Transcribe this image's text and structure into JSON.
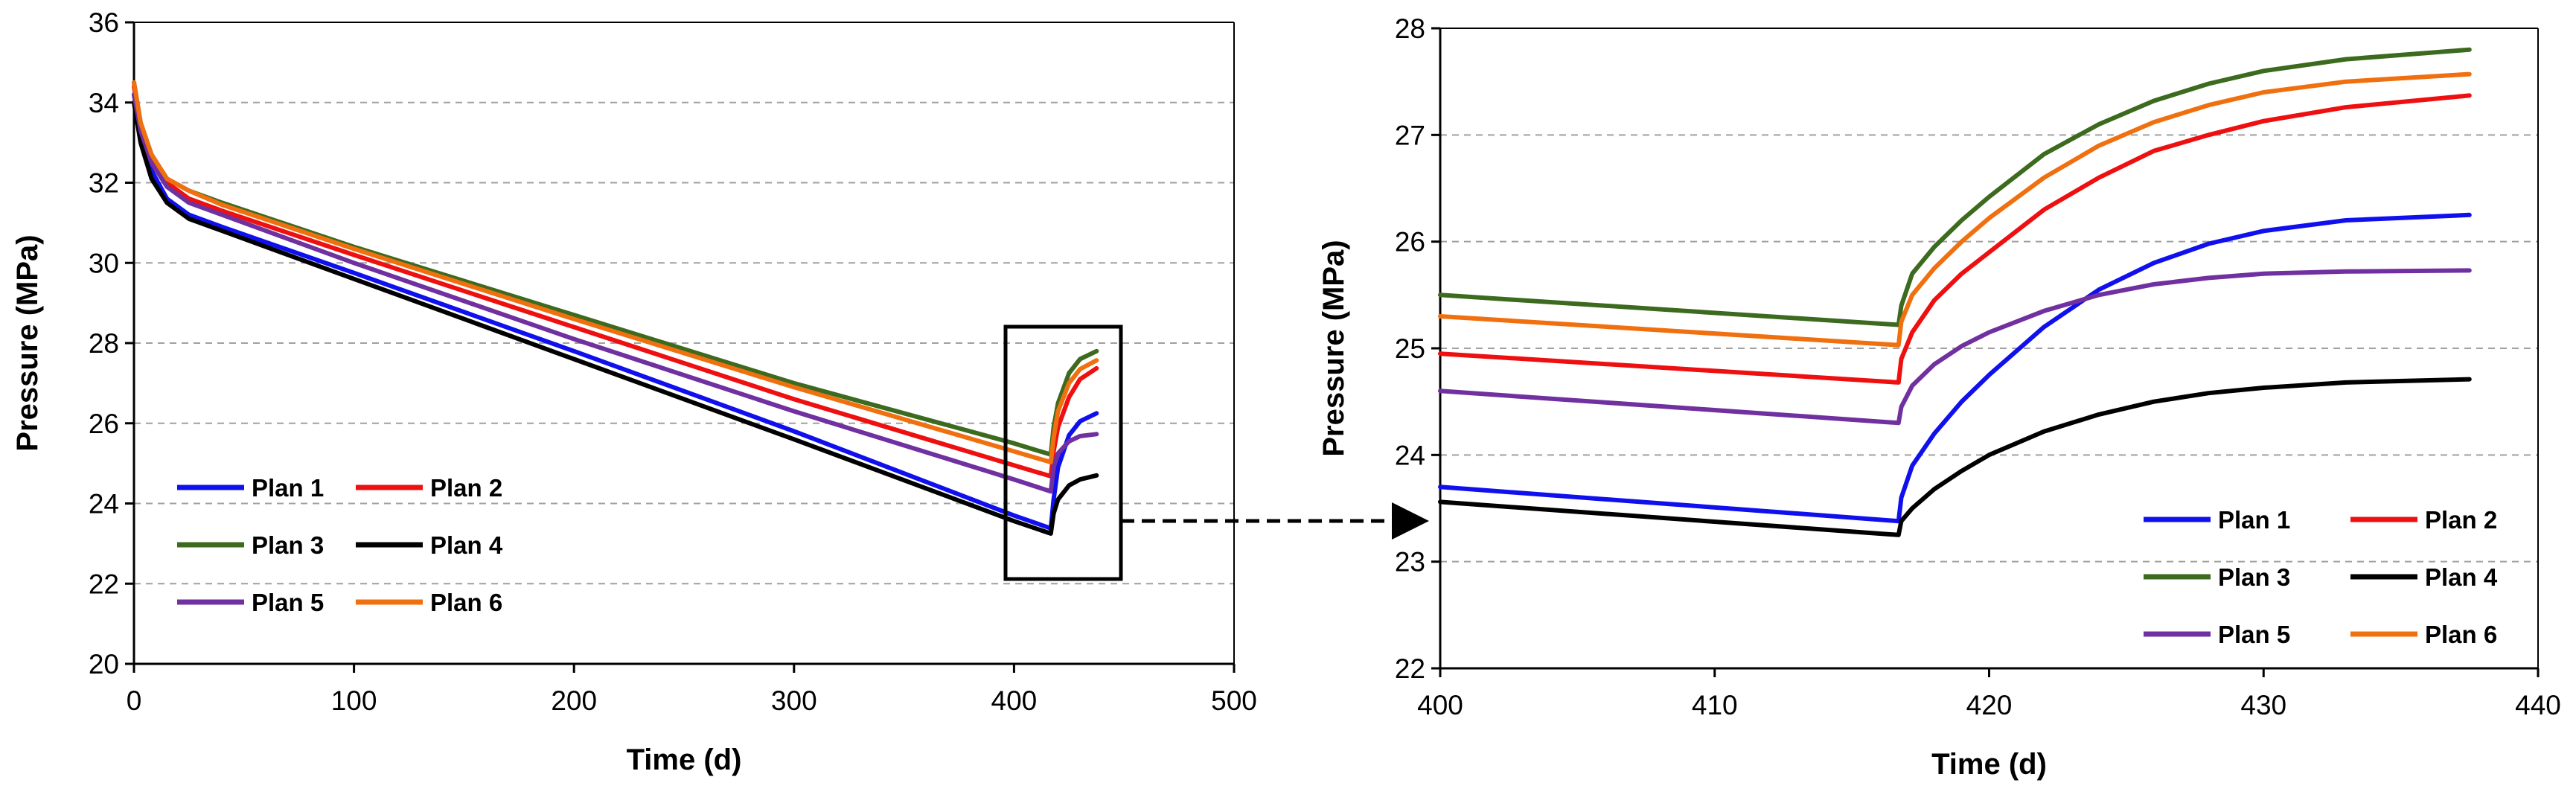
{
  "chart_data": [
    {
      "type": "line",
      "title": "",
      "xlabel": "Time (d)",
      "ylabel": "Pressure (MPa)",
      "xlim": [
        0,
        500
      ],
      "ylim": [
        20,
        36
      ],
      "xticks": [
        0,
        100,
        200,
        300,
        400,
        500
      ],
      "yticks": [
        20,
        22,
        24,
        26,
        28,
        30,
        32,
        34,
        36
      ],
      "grid": "horizontal dashed",
      "legend_position": "bottom-left",
      "series": [
        {
          "name": "Plan 1",
          "color": "#1010ee",
          "x": [
            0,
            3,
            8,
            15,
            25,
            40,
            100,
            200,
            300,
            400,
            416.7,
            418,
            420,
            425,
            430,
            437.5
          ],
          "y": [
            34.2,
            33.2,
            32.3,
            31.6,
            31.2,
            30.9,
            29.75,
            27.8,
            25.8,
            23.7,
            23.38,
            24.1,
            24.9,
            25.7,
            26.05,
            26.25
          ]
        },
        {
          "name": "Plan 2",
          "color": "#ee1010",
          "x": [
            0,
            3,
            8,
            15,
            25,
            40,
            100,
            200,
            300,
            400,
            416.7,
            418,
            420,
            425,
            430,
            437.5
          ],
          "y": [
            34.4,
            33.4,
            32.6,
            32.0,
            31.6,
            31.3,
            30.2,
            28.4,
            26.6,
            24.95,
            24.68,
            25.3,
            25.9,
            26.65,
            27.1,
            27.37
          ]
        },
        {
          "name": "Plan 3",
          "color": "#3c6a1e",
          "x": [
            0,
            3,
            8,
            15,
            25,
            40,
            100,
            200,
            300,
            400,
            416.7,
            418,
            420,
            425,
            430,
            437.5
          ],
          "y": [
            34.5,
            33.5,
            32.7,
            32.1,
            31.8,
            31.5,
            30.4,
            28.7,
            27.0,
            25.5,
            25.22,
            25.9,
            26.5,
            27.25,
            27.6,
            27.8
          ]
        },
        {
          "name": "Plan 4",
          "color": "#000000",
          "x": [
            0,
            3,
            8,
            15,
            25,
            40,
            100,
            200,
            300,
            400,
            416.7,
            418,
            420,
            425,
            430,
            437.5
          ],
          "y": [
            34.0,
            33.0,
            32.1,
            31.5,
            31.1,
            30.8,
            29.6,
            27.6,
            25.6,
            23.56,
            23.25,
            23.75,
            24.1,
            24.45,
            24.6,
            24.7
          ]
        },
        {
          "name": "Plan 5",
          "color": "#7030a0",
          "x": [
            0,
            3,
            8,
            15,
            25,
            40,
            100,
            200,
            300,
            400,
            416.7,
            418,
            420,
            425,
            430,
            437.5
          ],
          "y": [
            34.2,
            33.3,
            32.5,
            31.9,
            31.5,
            31.2,
            30.0,
            28.1,
            26.3,
            24.6,
            24.3,
            24.9,
            25.25,
            25.55,
            25.68,
            25.73
          ]
        },
        {
          "name": "Plan 6",
          "color": "#f07010",
          "x": [
            0,
            3,
            8,
            15,
            25,
            40,
            100,
            200,
            300,
            400,
            416.7,
            418,
            420,
            425,
            430,
            437.5
          ],
          "y": [
            34.5,
            33.5,
            32.7,
            32.1,
            31.8,
            31.45,
            30.35,
            28.6,
            26.9,
            25.3,
            25.03,
            25.65,
            26.3,
            27.0,
            27.35,
            27.57
          ]
        }
      ]
    },
    {
      "type": "line",
      "title": "",
      "xlabel": "Time (d)",
      "ylabel": "Pressure (MPa)",
      "xlim": [
        400,
        440
      ],
      "ylim": [
        22,
        28
      ],
      "xticks": [
        400,
        410,
        420,
        430,
        440
      ],
      "yticks": [
        22,
        23,
        24,
        25,
        26,
        27,
        28
      ],
      "grid": "horizontal dashed",
      "legend_position": "bottom-right",
      "series": [
        {
          "name": "Plan 1",
          "color": "#1010ee",
          "x": [
            400,
            416.7,
            416.8,
            417.2,
            418,
            419,
            420,
            422,
            424,
            426,
            428,
            430,
            433,
            437.5
          ],
          "y": [
            23.7,
            23.38,
            23.6,
            23.9,
            24.2,
            24.5,
            24.75,
            25.2,
            25.55,
            25.8,
            25.98,
            26.1,
            26.2,
            26.25
          ]
        },
        {
          "name": "Plan 2",
          "color": "#ee1010",
          "x": [
            400,
            416.7,
            416.8,
            417.2,
            418,
            419,
            420,
            422,
            424,
            426,
            428,
            430,
            433,
            437.5
          ],
          "y": [
            24.95,
            24.68,
            24.9,
            25.15,
            25.45,
            25.7,
            25.9,
            26.3,
            26.6,
            26.85,
            27.0,
            27.13,
            27.26,
            27.37
          ]
        },
        {
          "name": "Plan 3",
          "color": "#3c6a1e",
          "x": [
            400,
            416.7,
            416.8,
            417.2,
            418,
            419,
            420,
            422,
            424,
            426,
            428,
            430,
            433,
            437.5
          ],
          "y": [
            25.5,
            25.22,
            25.4,
            25.7,
            25.95,
            26.2,
            26.42,
            26.82,
            27.1,
            27.32,
            27.48,
            27.6,
            27.71,
            27.8
          ]
        },
        {
          "name": "Plan 4",
          "color": "#000000",
          "x": [
            400,
            416.7,
            416.8,
            417.2,
            418,
            419,
            420,
            422,
            424,
            426,
            428,
            430,
            433,
            437.5
          ],
          "y": [
            23.56,
            23.25,
            23.38,
            23.5,
            23.68,
            23.85,
            24.0,
            24.22,
            24.38,
            24.5,
            24.58,
            24.63,
            24.68,
            24.71
          ]
        },
        {
          "name": "Plan 5",
          "color": "#7030a0",
          "x": [
            400,
            416.7,
            416.8,
            417.2,
            418,
            419,
            420,
            422,
            424,
            426,
            428,
            430,
            433,
            437.5
          ],
          "y": [
            24.6,
            24.3,
            24.45,
            24.65,
            24.85,
            25.02,
            25.15,
            25.35,
            25.5,
            25.6,
            25.66,
            25.7,
            25.72,
            25.73
          ]
        },
        {
          "name": "Plan 6",
          "color": "#f07010",
          "x": [
            400,
            416.7,
            416.8,
            417.2,
            418,
            419,
            420,
            422,
            424,
            426,
            428,
            430,
            433,
            437.5
          ],
          "y": [
            25.3,
            25.03,
            25.25,
            25.5,
            25.75,
            26.0,
            26.22,
            26.6,
            26.9,
            27.12,
            27.28,
            27.4,
            27.5,
            27.57
          ]
        }
      ]
    }
  ]
}
